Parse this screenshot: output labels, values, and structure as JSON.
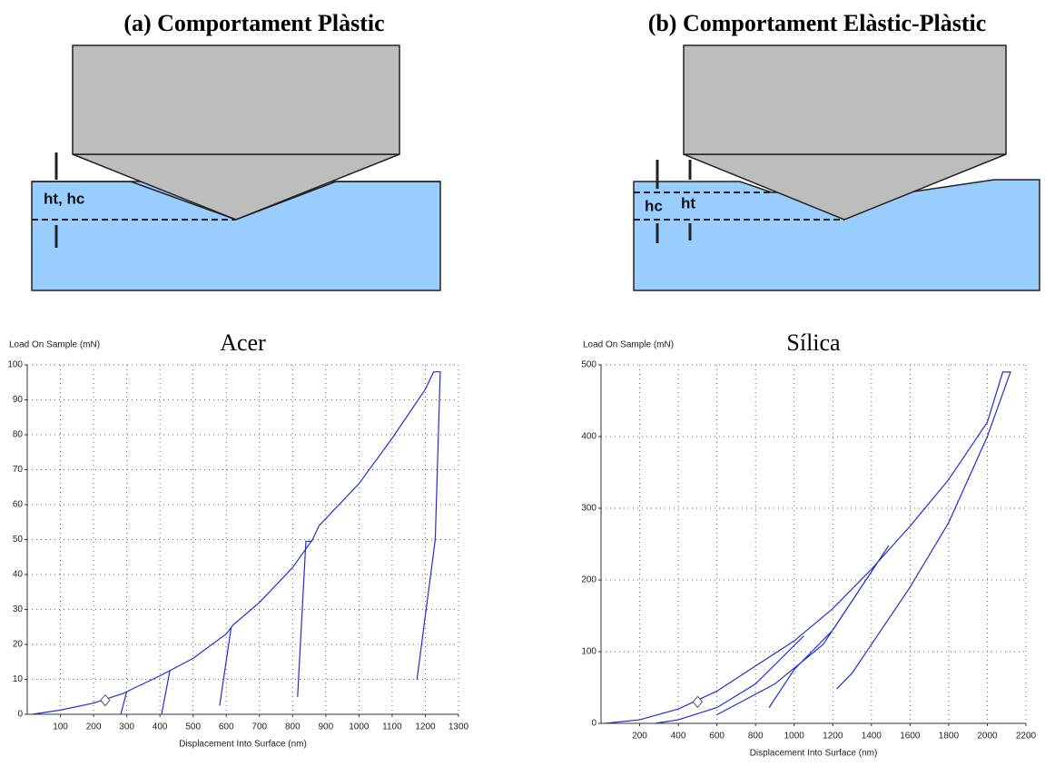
{
  "panels": [
    {
      "title": "(a) Comportament Plàstic",
      "labels": [
        "ht, hc"
      ]
    },
    {
      "title": "(b) Comportament Elàstic-Plàstic",
      "labels": [
        "hc",
        "ht"
      ]
    }
  ],
  "chart_data": [
    {
      "type": "line",
      "title": "Acer",
      "y_label": "Load On Sample (mN)",
      "x_label": "Displacement Into Surface (nm)",
      "xlim": [
        0,
        1300
      ],
      "ylim": [
        0,
        100
      ],
      "xticks": [
        100,
        200,
        300,
        400,
        500,
        600,
        700,
        800,
        900,
        1000,
        1100,
        1200,
        1300
      ],
      "yticks": [
        0,
        10,
        20,
        30,
        40,
        50,
        60,
        70,
        80,
        90,
        100
      ],
      "grid": true,
      "series": [
        {
          "color": "#2030d0",
          "x": [
            15,
            100,
            200,
            290,
            300,
            400,
            430,
            500,
            600,
            620,
            700,
            800,
            860,
            880,
            1000,
            1100,
            1200,
            1225,
            1245,
            1230,
            1175,
            null,
            300,
            282,
            null,
            430,
            405,
            null,
            615,
            580,
            null,
            860,
            840,
            815
          ],
          "values": [
            0,
            1.2,
            3.2,
            6,
            6.5,
            11,
            12.5,
            16,
            23,
            25.5,
            32,
            42,
            50,
            54,
            66,
            79,
            93,
            98,
            98,
            50,
            10,
            null,
            6.5,
            0,
            null,
            12.5,
            0,
            null,
            25,
            2.5,
            null,
            49.5,
            49.5,
            5
          ]
        }
      ],
      "markers": {
        "x": [
          235
        ],
        "values": [
          4
        ]
      }
    },
    {
      "type": "line",
      "title": "Sílica",
      "y_label": "Load On Sample (mN)",
      "x_label": "Displacement Into Surface (nm)",
      "xlim": [
        0,
        2200
      ],
      "ylim": [
        0,
        500
      ],
      "xticks": [
        200,
        400,
        600,
        800,
        1000,
        1200,
        1400,
        1600,
        1800,
        2000,
        2200
      ],
      "yticks": [
        0,
        100,
        200,
        300,
        400,
        500
      ],
      "grid": true,
      "series": [
        {
          "color": "#2030d0",
          "x": [
            20,
            200,
            400,
            600,
            800,
            1000,
            1200,
            1400,
            1600,
            1800,
            2000,
            2080,
            2120,
            2000,
            1800,
            1600,
            1400,
            1300,
            1220,
            null,
            1050,
            800,
            600,
            400,
            280,
            null,
            1490,
            1200,
            1000,
            870,
            null,
            1470,
            1150,
            900,
            600
          ],
          "values": [
            0,
            5,
            20,
            45,
            80,
            115,
            160,
            215,
            275,
            340,
            420,
            490,
            490,
            400,
            280,
            190,
            110,
            70,
            48,
            null,
            122,
            55,
            22,
            5,
            0,
            null,
            248,
            130,
            75,
            22,
            null,
            240,
            110,
            55,
            12
          ]
        }
      ],
      "markers": {
        "x": [
          500
        ],
        "values": [
          30
        ]
      }
    }
  ]
}
